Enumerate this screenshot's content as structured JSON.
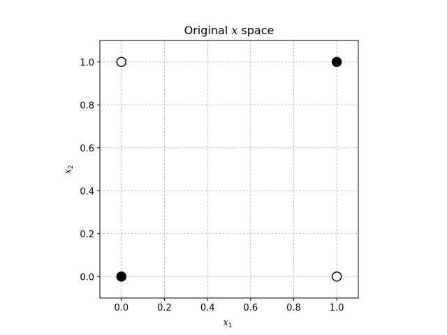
{
  "chart_data": {
    "type": "scatter",
    "title_prefix": "Original ",
    "title_var": "x",
    "title_suffix": " space",
    "xlabel": {
      "var": "x",
      "sub": "1"
    },
    "ylabel": {
      "var": "x",
      "sub": "2"
    },
    "xlim": [
      -0.1,
      1.1
    ],
    "ylim": [
      -0.1,
      1.1
    ],
    "xticks": [
      0.0,
      0.2,
      0.4,
      0.6,
      0.8,
      1.0
    ],
    "yticks": [
      0.0,
      0.2,
      0.4,
      0.6,
      0.8,
      1.0
    ],
    "xtick_labels": [
      "0.0",
      "0.2",
      "0.4",
      "0.6",
      "0.8",
      "1.0"
    ],
    "ytick_labels": [
      "0.0",
      "0.2",
      "0.4",
      "0.6",
      "0.8",
      "1.0"
    ],
    "grid": true,
    "points": [
      {
        "x": 0,
        "y": 0,
        "filled": true
      },
      {
        "x": 1,
        "y": 1,
        "filled": true
      },
      {
        "x": 0,
        "y": 1,
        "filled": false
      },
      {
        "x": 1,
        "y": 0,
        "filled": false
      }
    ],
    "colors": {
      "marker": "#000000",
      "grid": "#b0b0b0",
      "axes": "#000000"
    }
  }
}
